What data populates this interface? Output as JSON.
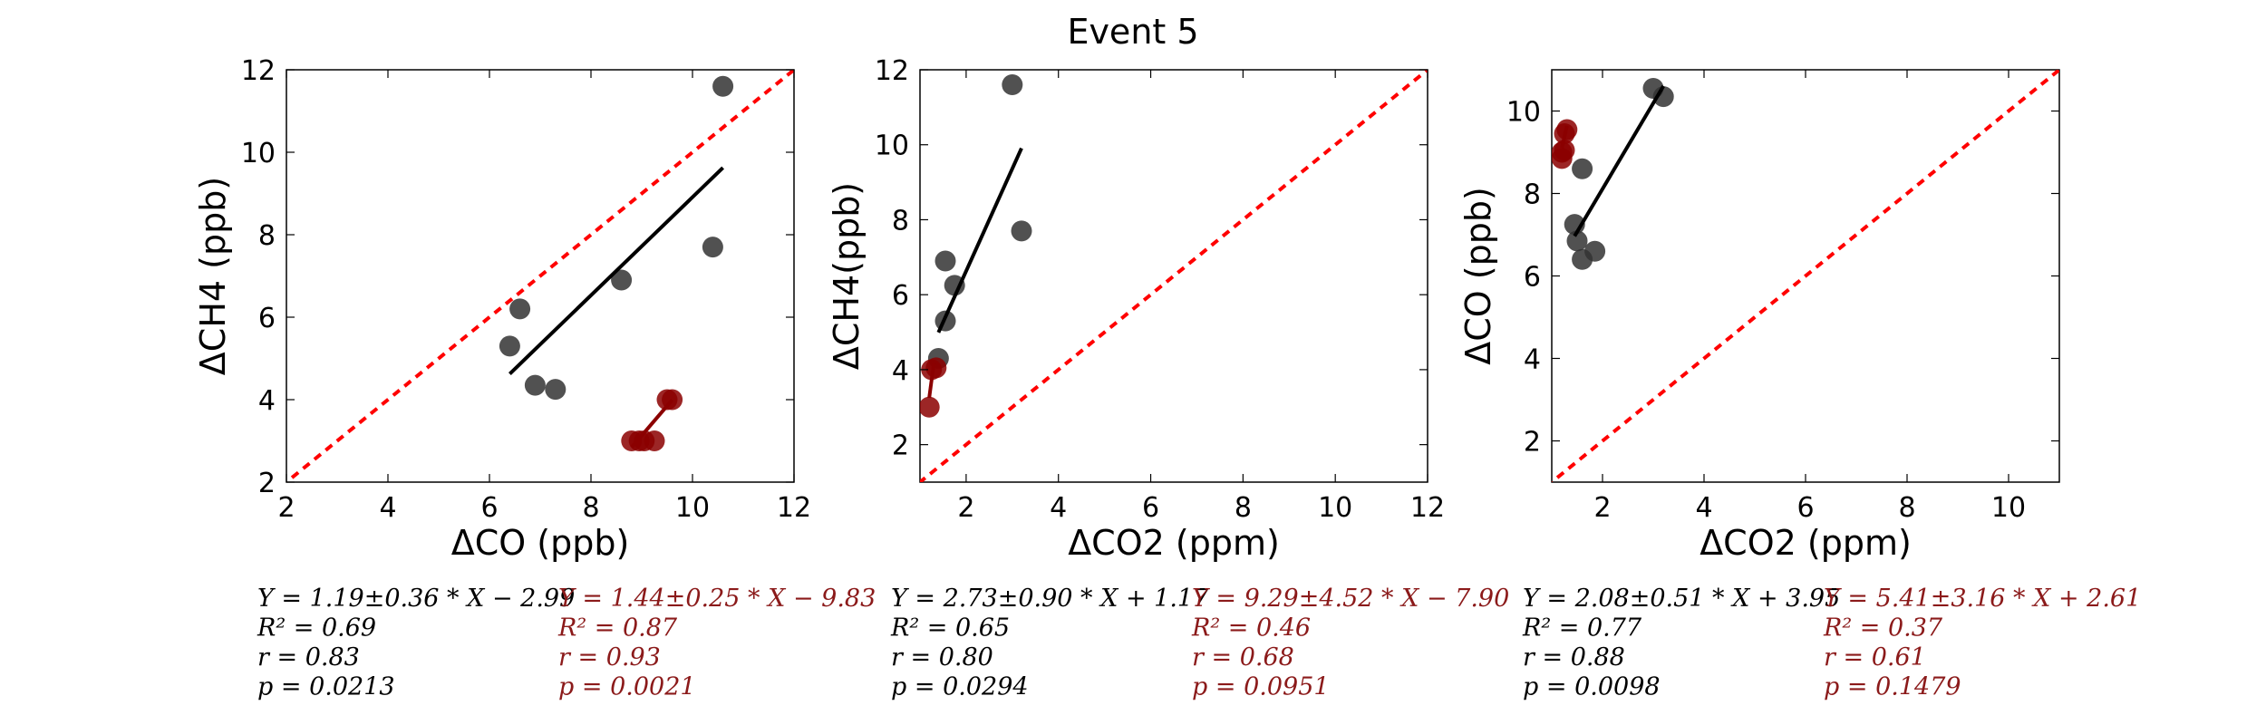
{
  "suptitle": "Event 5",
  "colors": {
    "black_points": "#333333",
    "red_points": "#8b0000",
    "fit_black": "#000000",
    "fit_red": "#8b0000",
    "one_to_one": "#ff0000",
    "stats_black": "#000000",
    "stats_red": "#8b1a1a"
  },
  "chart_data": [
    {
      "type": "scatter",
      "xlabel": "ΔCO (ppb)",
      "ylabel": "ΔCH4 (ppb)",
      "xlim": [
        2,
        12
      ],
      "ylim": [
        2,
        12
      ],
      "xticks": [
        2,
        4,
        6,
        8,
        10,
        12
      ],
      "yticks": [
        2,
        4,
        6,
        8,
        10,
        12
      ],
      "one_to_one_line": true,
      "series": [
        {
          "color": "black",
          "points": [
            [
              6.4,
              5.3
            ],
            [
              6.6,
              6.2
            ],
            [
              6.9,
              4.35
            ],
            [
              7.3,
              4.25
            ],
            [
              8.6,
              6.9
            ],
            [
              10.4,
              7.7
            ],
            [
              10.6,
              11.6
            ]
          ],
          "fit": {
            "slope": 1.19,
            "intercept": -2.99,
            "x_range": [
              6.4,
              10.6
            ]
          }
        },
        {
          "color": "red",
          "points": [
            [
              8.8,
              3.0
            ],
            [
              8.95,
              3.0
            ],
            [
              9.05,
              3.0
            ],
            [
              9.25,
              3.0
            ],
            [
              9.5,
              4.0
            ],
            [
              9.6,
              4.0
            ]
          ],
          "fit": {
            "slope": 1.44,
            "intercept": -9.83,
            "x_range": [
              8.8,
              9.6
            ]
          }
        }
      ],
      "stats": {
        "black": [
          "Y = 1.19±0.36 * X − 2.99",
          "R² = 0.69",
          "r = 0.83",
          "p = 0.0213"
        ],
        "red": [
          "Y = 1.44±0.25 * X − 9.83",
          "R² = 0.87",
          "r = 0.93",
          "p = 0.0021"
        ]
      }
    },
    {
      "type": "scatter",
      "xlabel": "ΔCO2 (ppm)",
      "ylabel": "ΔCH4(ppb)",
      "xlim": [
        1,
        12
      ],
      "ylim": [
        1,
        12
      ],
      "xticks": [
        2,
        4,
        6,
        8,
        10,
        12
      ],
      "yticks": [
        2,
        4,
        6,
        8,
        10,
        12
      ],
      "one_to_one_line": true,
      "series": [
        {
          "color": "black",
          "points": [
            [
              1.4,
              4.3
            ],
            [
              1.55,
              5.3
            ],
            [
              1.55,
              6.9
            ],
            [
              1.75,
              6.25
            ],
            [
              3.0,
              11.6
            ],
            [
              3.2,
              7.7
            ]
          ],
          "fit": {
            "slope": 2.73,
            "intercept": 1.17,
            "x_range": [
              1.4,
              3.2
            ]
          }
        },
        {
          "color": "red",
          "points": [
            [
              1.2,
              3.0
            ],
            [
              1.25,
              4.0
            ],
            [
              1.35,
              4.05
            ]
          ],
          "fit": {
            "slope": 9.29,
            "intercept": -7.9,
            "x_range": [
              1.2,
              1.3
            ]
          }
        }
      ],
      "stats": {
        "black": [
          "Y = 2.73±0.90 * X + 1.17",
          "R² = 0.65",
          "r = 0.80",
          "p = 0.0294"
        ],
        "red": [
          "Y = 9.29±4.52 * X − 7.90",
          "R² = 0.46",
          "r = 0.68",
          "p = 0.0951"
        ]
      }
    },
    {
      "type": "scatter",
      "xlabel": "ΔCO2 (ppm)",
      "ylabel": "ΔCO (ppb)",
      "xlim": [
        1,
        11
      ],
      "ylim": [
        1,
        11
      ],
      "xticks": [
        2,
        4,
        6,
        8,
        10
      ],
      "yticks": [
        2,
        4,
        6,
        8,
        10
      ],
      "one_to_one_line": true,
      "series": [
        {
          "color": "black",
          "points": [
            [
              1.45,
              7.25
            ],
            [
              1.5,
              6.85
            ],
            [
              1.6,
              6.4
            ],
            [
              1.6,
              8.6
            ],
            [
              1.85,
              6.6
            ],
            [
              3.0,
              10.55
            ],
            [
              3.2,
              10.35
            ]
          ],
          "fit": {
            "slope": 2.08,
            "intercept": 3.95,
            "x_range": [
              1.45,
              3.2
            ]
          }
        },
        {
          "color": "red",
          "points": [
            [
              1.2,
              8.85
            ],
            [
              1.2,
              9.0
            ],
            [
              1.25,
              9.45
            ],
            [
              1.3,
              9.55
            ],
            [
              1.25,
              9.05
            ]
          ],
          "fit": {
            "slope": 5.41,
            "intercept": 2.61,
            "x_range": [
              1.2,
              1.3
            ]
          }
        }
      ],
      "stats": {
        "black": [
          "Y = 2.08±0.51 * X + 3.95",
          "R² = 0.77",
          "r = 0.88",
          "p = 0.0098"
        ],
        "red": [
          "Y = 5.41±3.16 * X + 2.61",
          "R² = 0.37",
          "r = 0.61",
          "p = 0.1479"
        ]
      }
    }
  ]
}
